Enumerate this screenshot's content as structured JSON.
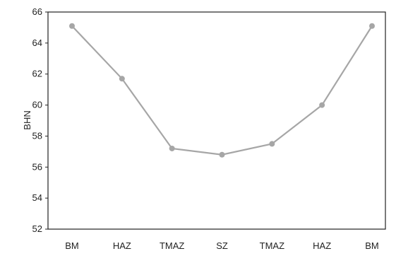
{
  "chart_data": {
    "type": "line",
    "categories": [
      "BM",
      "HAZ",
      "TMAZ",
      "SZ",
      "TMAZ",
      "HAZ",
      "BM"
    ],
    "values": [
      65.1,
      61.7,
      57.2,
      56.8,
      57.5,
      60.0,
      65.1
    ],
    "xlabel": "",
    "ylabel": "BHN",
    "ylim": [
      52,
      66
    ],
    "yticks": [
      "52",
      "54",
      "56",
      "58",
      "60",
      "62",
      "64",
      "66"
    ],
    "grid": false,
    "line_color": "#a6a6a6",
    "marker_color": "#a6a6a6"
  }
}
